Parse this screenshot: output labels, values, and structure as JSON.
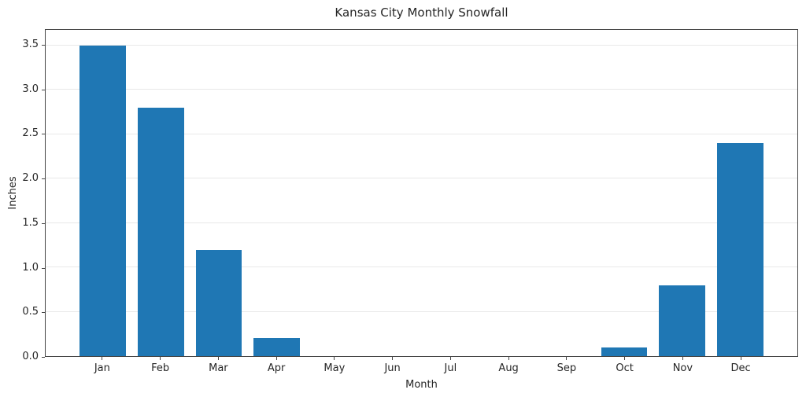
{
  "chart_data": {
    "type": "bar",
    "title": "Kansas City Monthly Snowfall",
    "xlabel": "Month",
    "ylabel": "Inches",
    "categories": [
      "Jan",
      "Feb",
      "Mar",
      "Apr",
      "May",
      "Jun",
      "Jul",
      "Aug",
      "Sep",
      "Oct",
      "Nov",
      "Dec"
    ],
    "values": [
      3.5,
      2.8,
      1.2,
      0.2,
      0,
      0,
      0,
      0,
      0,
      0.1,
      0.8,
      2.4
    ],
    "ylim": [
      0,
      3.675
    ],
    "yticks": [
      0.0,
      0.5,
      1.0,
      1.5,
      2.0,
      2.5,
      3.0,
      3.5
    ],
    "ytick_labels": [
      "0.0",
      "0.5",
      "1.0",
      "1.5",
      "2.0",
      "2.5",
      "3.0",
      "3.5"
    ],
    "grid": "horizontal",
    "legend": "none",
    "bar_color": "#1f77b4"
  },
  "colors": {
    "bar": "#1f77b4",
    "grid": "#e8e8e8",
    "spine": "#454545",
    "text": "#262626",
    "background": "#ffffff"
  }
}
